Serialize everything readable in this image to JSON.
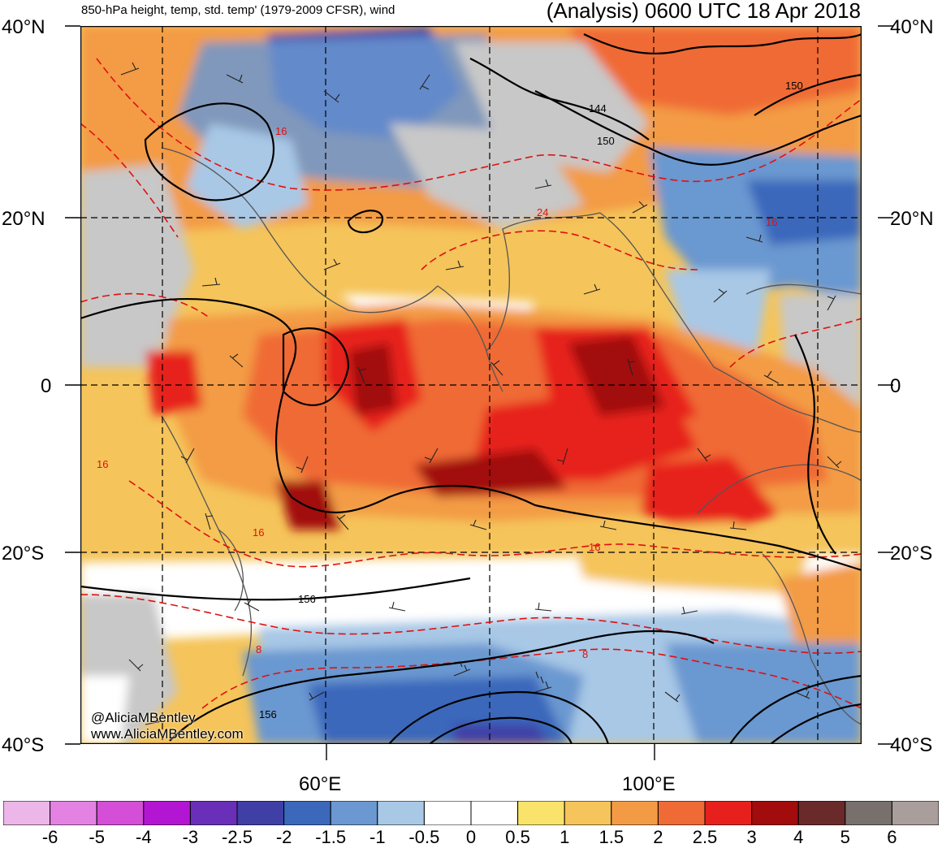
{
  "header": {
    "left_title": "850-hPa height, temp, std. temp' (1979-2009 CFSR), wind",
    "right_title": "(Analysis) 0600 UTC 18 Apr 2018"
  },
  "axes": {
    "lat_left": [
      "40°N",
      "20°N",
      "0",
      "20°S",
      "40°S"
    ],
    "lat_right": [
      "40°N",
      "20°N",
      "0",
      "20°S",
      "40°S"
    ],
    "lon": [
      "60°E",
      "100°E"
    ]
  },
  "credit": {
    "handle": "@AliciaMBentley",
    "site": "www.AliciaMBentley.com"
  },
  "contour_labels": {
    "height": [
      "144",
      "150",
      "150",
      "156",
      "156"
    ],
    "temperature": [
      "16",
      "16",
      "16",
      "16",
      "16",
      "24",
      "8",
      "8"
    ]
  },
  "colorbar": {
    "labels": [
      "-6",
      "-5",
      "-4",
      "-3",
      "-2.5",
      "-2",
      "-1.5",
      "-1",
      "-0.5",
      "0",
      "0.5",
      "1",
      "1.5",
      "2",
      "2.5",
      "3",
      "4",
      "5",
      "6"
    ],
    "colors": [
      "#ecb6e8",
      "#e482e4",
      "#d44ed8",
      "#b316d3",
      "#6a2fb8",
      "#3f3fa6",
      "#3b68bb",
      "#6b98d0",
      "#a8c8e6",
      "#ffffff",
      "#ffffff",
      "#f9e36a",
      "#f5c45a",
      "#f39b44",
      "#f06a36",
      "#e7201d",
      "#a20c0c",
      "#6b2a2a",
      "#77706d",
      "#a99e9b"
    ]
  }
}
